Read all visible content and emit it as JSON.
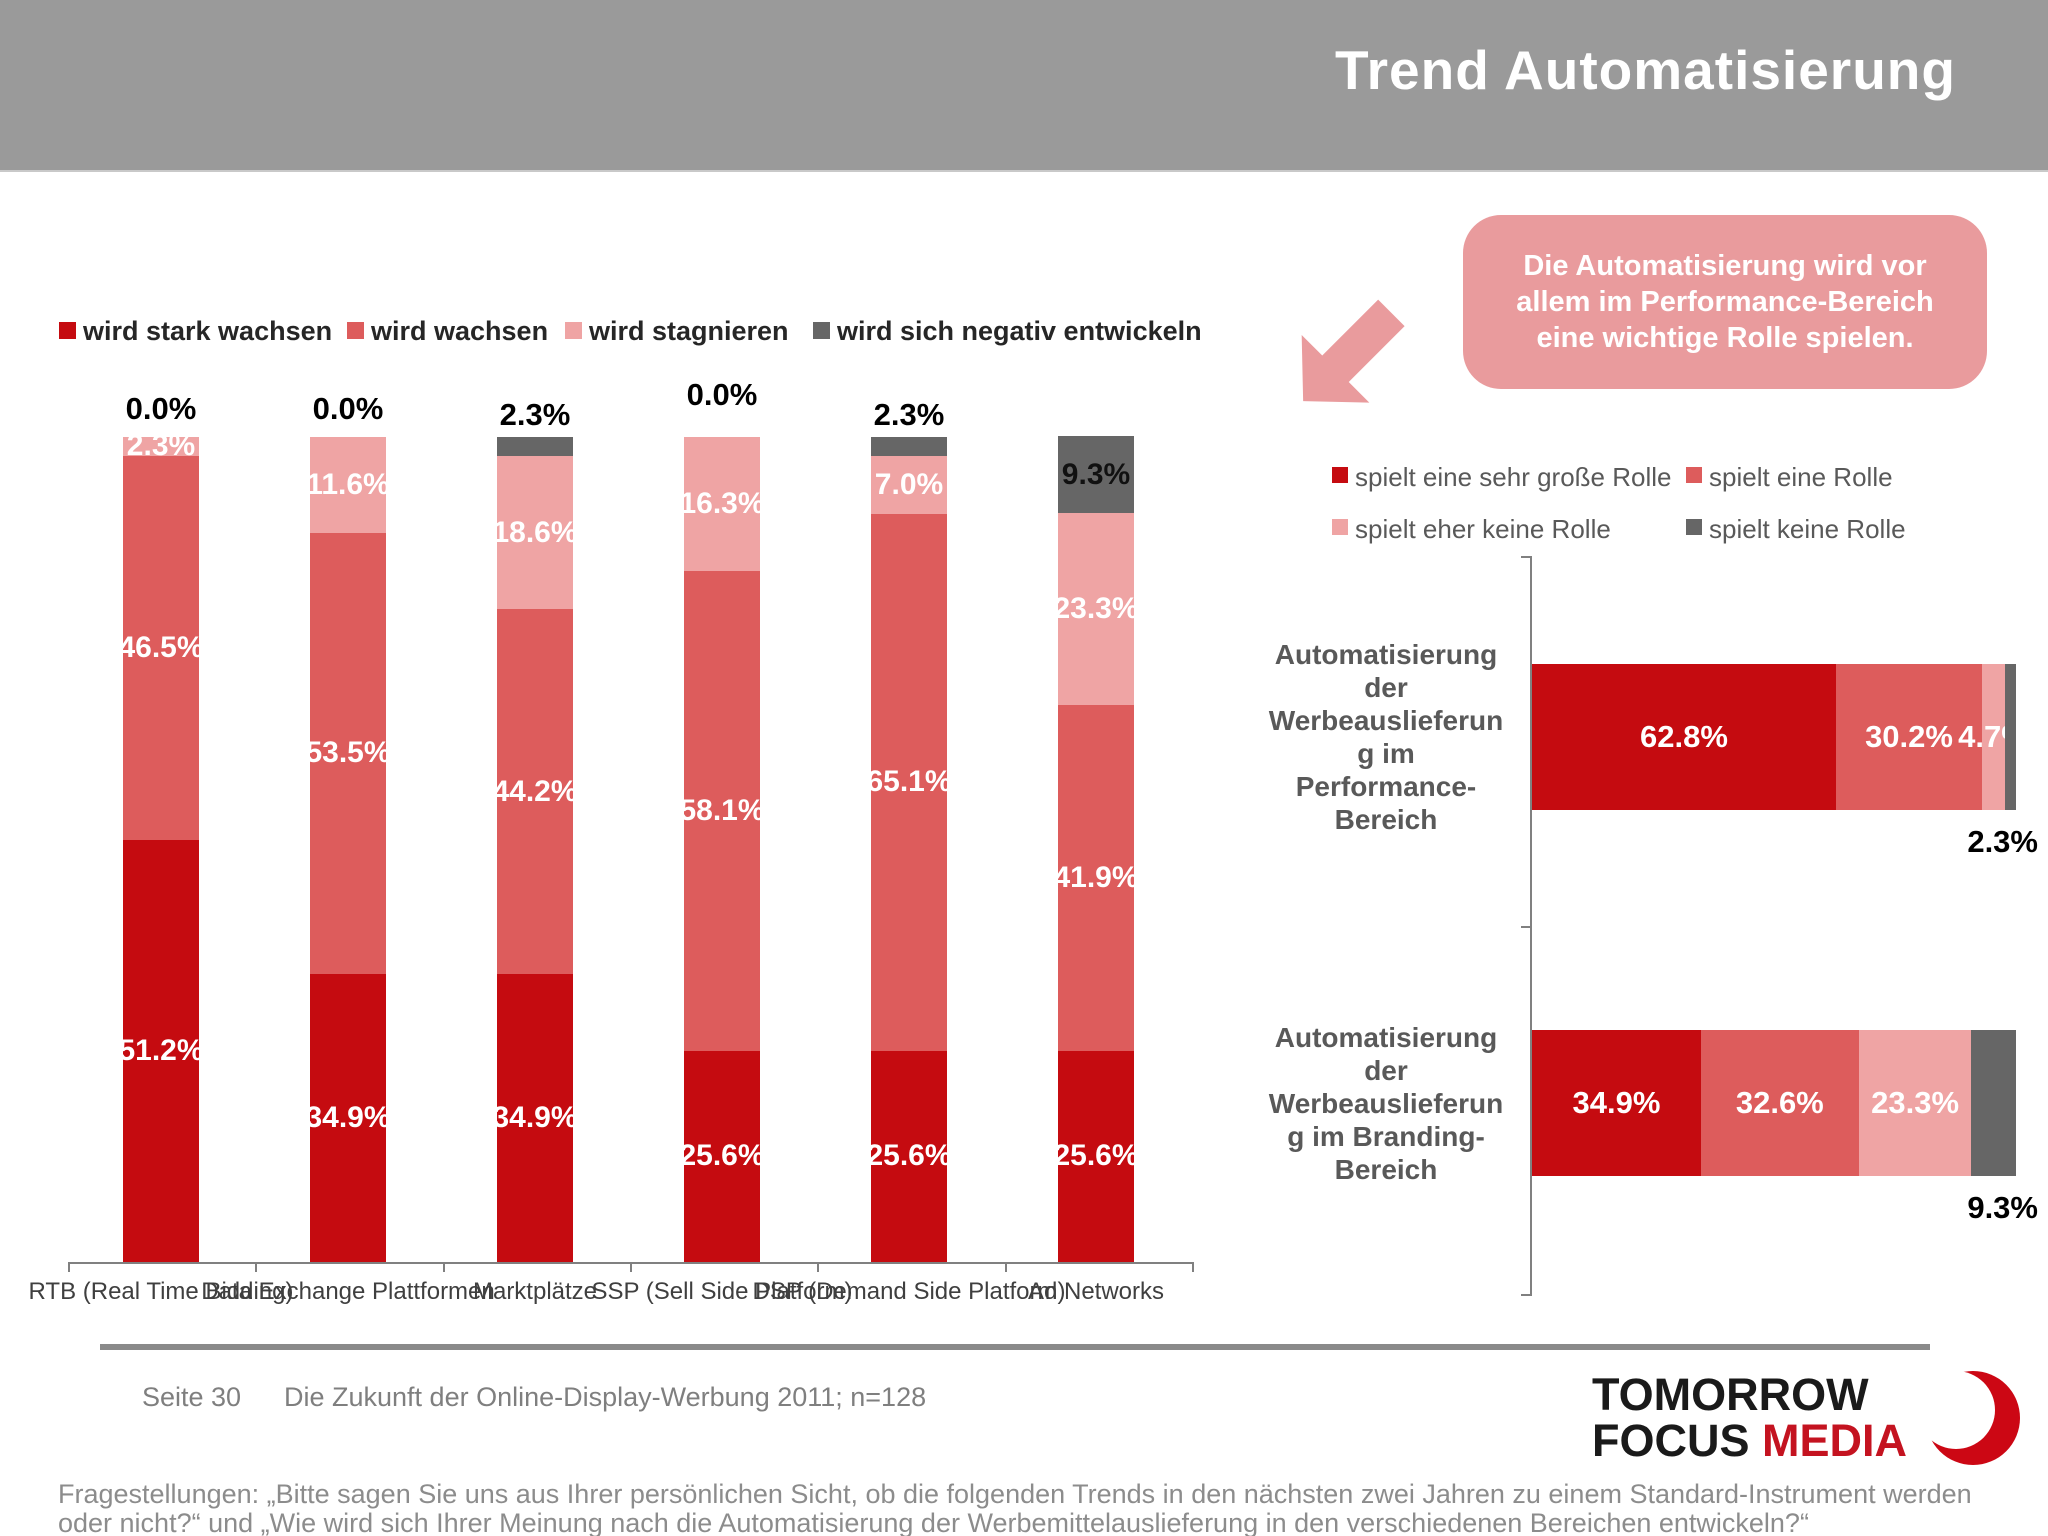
{
  "header": {
    "title": "Trend Automatisierung"
  },
  "colors": {
    "header_bg": "#9a9a9a",
    "series": [
      "#c50b10",
      "#dd5c5c",
      "#efa4a4",
      "#666666"
    ],
    "callout_bg": "#e99b9d",
    "logo_red": "#cc0714"
  },
  "left_chart": {
    "legend": [
      {
        "label": "wird stark wachsen"
      },
      {
        "label": "wird wachsen"
      },
      {
        "label": "wird stagnieren"
      },
      {
        "label": "wird sich negativ entwickeln"
      }
    ],
    "bars": [
      {
        "category": "RTB (Real Time Bidding)",
        "above_label": "0.0%",
        "segments": [
          {
            "pct": 51.2,
            "label": "51.2%"
          },
          {
            "pct": 46.5,
            "label": "46.5%"
          },
          {
            "pct": 2.3,
            "label": "2.3%"
          },
          {
            "pct": 0,
            "label": ""
          }
        ]
      },
      {
        "category": "Data Exchange Plattformen",
        "above_label": "0.0%",
        "segments": [
          {
            "pct": 34.9,
            "label": "34.9%"
          },
          {
            "pct": 53.5,
            "label": "53.5%"
          },
          {
            "pct": 11.6,
            "label": "11.6%"
          },
          {
            "pct": 0,
            "label": ""
          }
        ]
      },
      {
        "category": "Marktplätze",
        "above_label": "2.3%",
        "segments": [
          {
            "pct": 34.9,
            "label": "34.9%"
          },
          {
            "pct": 44.2,
            "label": "44.2%"
          },
          {
            "pct": 18.6,
            "label": "18.6%"
          },
          {
            "pct": 2.3,
            "label": ""
          }
        ]
      },
      {
        "category": "SSP (Sell Side Platform)",
        "above_label": "0.0%",
        "segments": [
          {
            "pct": 25.6,
            "label": "25.6%"
          },
          {
            "pct": 58.1,
            "label": "58.1%"
          },
          {
            "pct": 16.3,
            "label": "16.3%"
          },
          {
            "pct": 0,
            "label": ""
          }
        ]
      },
      {
        "category": "DSP (Demand Side Platform)",
        "above_label": "2.3%",
        "segments": [
          {
            "pct": 25.6,
            "label": "25.6%"
          },
          {
            "pct": 65.1,
            "label": "65.1%"
          },
          {
            "pct": 7.0,
            "label": "7.0%"
          },
          {
            "pct": 2.3,
            "label": ""
          }
        ]
      },
      {
        "category": "Ad Networks",
        "above_label": "",
        "segments": [
          {
            "pct": 25.6,
            "label": "25.6%"
          },
          {
            "pct": 41.9,
            "label": "41.9%"
          },
          {
            "pct": 23.3,
            "label": "23.3%"
          },
          {
            "pct": 9.3,
            "label": "9.3%",
            "label_color": "#111111"
          }
        ]
      }
    ]
  },
  "callout": {
    "text": "Die Automatisierung wird vor allem im Performance-Bereich eine wichtige Rolle spielen."
  },
  "right_chart": {
    "legend": [
      {
        "label": "spielt eine sehr große Rolle"
      },
      {
        "label": "spielt eine Rolle"
      },
      {
        "label": "spielt eher keine Rolle"
      },
      {
        "label": "spielt keine Rolle"
      }
    ],
    "bars": [
      {
        "label_lines": [
          "Automatisierung",
          "der",
          "Werbeauslieferun",
          "g im",
          "Performance-",
          "Bereich"
        ],
        "segments": [
          {
            "pct": 62.8,
            "label": "62.8%"
          },
          {
            "pct": 30.2,
            "label": "30.2%"
          },
          {
            "pct": 4.7,
            "label": "4.7%"
          },
          {
            "pct": 2.3,
            "label": ""
          }
        ],
        "below_label": "2.3%"
      },
      {
        "label_lines": [
          "Automatisierung",
          "der",
          "Werbeauslieferun",
          "g im Branding-",
          "Bereich"
        ],
        "segments": [
          {
            "pct": 34.9,
            "label": "34.9%"
          },
          {
            "pct": 32.6,
            "label": "32.6%"
          },
          {
            "pct": 23.3,
            "label": "23.3%"
          },
          {
            "pct": 9.3,
            "label": ""
          }
        ],
        "below_label": "9.3%"
      }
    ]
  },
  "footer": {
    "page": "Seite 30",
    "source": "Die Zukunft der Online-Display-Werbung 2011; n=128"
  },
  "logo": {
    "line1": "TOMORROW",
    "line2_black": "FOCUS ",
    "line2_red": "MEDIA"
  },
  "questions": {
    "lines": [
      "Fragestellungen: „Bitte sagen Sie uns aus Ihrer persönlichen Sicht, ob die folgenden Trends in den nächsten zwei Jahren zu einem Standard-Instrument werden",
      "oder nicht?“ und  „Wie wird sich Ihrer Meinung nach die Automatisierung der Werbemittelauslieferung in den verschiedenen Bereichen entwickeln?“"
    ]
  },
  "chart_data": [
    {
      "type": "bar",
      "subtype": "stacked-vertical",
      "categories": [
        "RTB (Real Time Bidding)",
        "Data Exchange Plattformen",
        "Marktplätze",
        "SSP (Sell Side Platform)",
        "DSP (Demand Side Platform)",
        "Ad Networks"
      ],
      "series": [
        {
          "name": "wird stark wachsen",
          "values": [
            51.2,
            34.9,
            34.9,
            25.6,
            25.6,
            25.6
          ]
        },
        {
          "name": "wird wachsen",
          "values": [
            46.5,
            53.5,
            44.2,
            58.1,
            65.1,
            41.9
          ]
        },
        {
          "name": "wird stagnieren",
          "values": [
            2.3,
            11.6,
            18.6,
            16.3,
            7.0,
            23.3
          ]
        },
        {
          "name": "wird sich negativ entwickeln",
          "values": [
            0.0,
            0.0,
            2.3,
            0.0,
            2.3,
            9.3
          ]
        }
      ],
      "title": "",
      "xlabel": "",
      "ylabel": "",
      "ylim": [
        0,
        100
      ],
      "grid": false,
      "legend_position": "top",
      "unit": "%"
    },
    {
      "type": "bar",
      "subtype": "stacked-horizontal",
      "categories": [
        "Automatisierung der Werbeauslieferung im Performance-Bereich",
        "Automatisierung der Werbeauslieferung im Branding-Bereich"
      ],
      "series": [
        {
          "name": "spielt eine sehr große Rolle",
          "values": [
            62.8,
            34.9
          ]
        },
        {
          "name": "spielt eine Rolle",
          "values": [
            30.2,
            32.6
          ]
        },
        {
          "name": "spielt eher keine Rolle",
          "values": [
            4.7,
            23.3
          ]
        },
        {
          "name": "spielt keine Rolle",
          "values": [
            2.3,
            9.3
          ]
        }
      ],
      "title": "",
      "xlabel": "",
      "ylabel": "",
      "xlim": [
        0,
        100
      ],
      "grid": false,
      "legend_position": "top",
      "unit": "%"
    }
  ]
}
